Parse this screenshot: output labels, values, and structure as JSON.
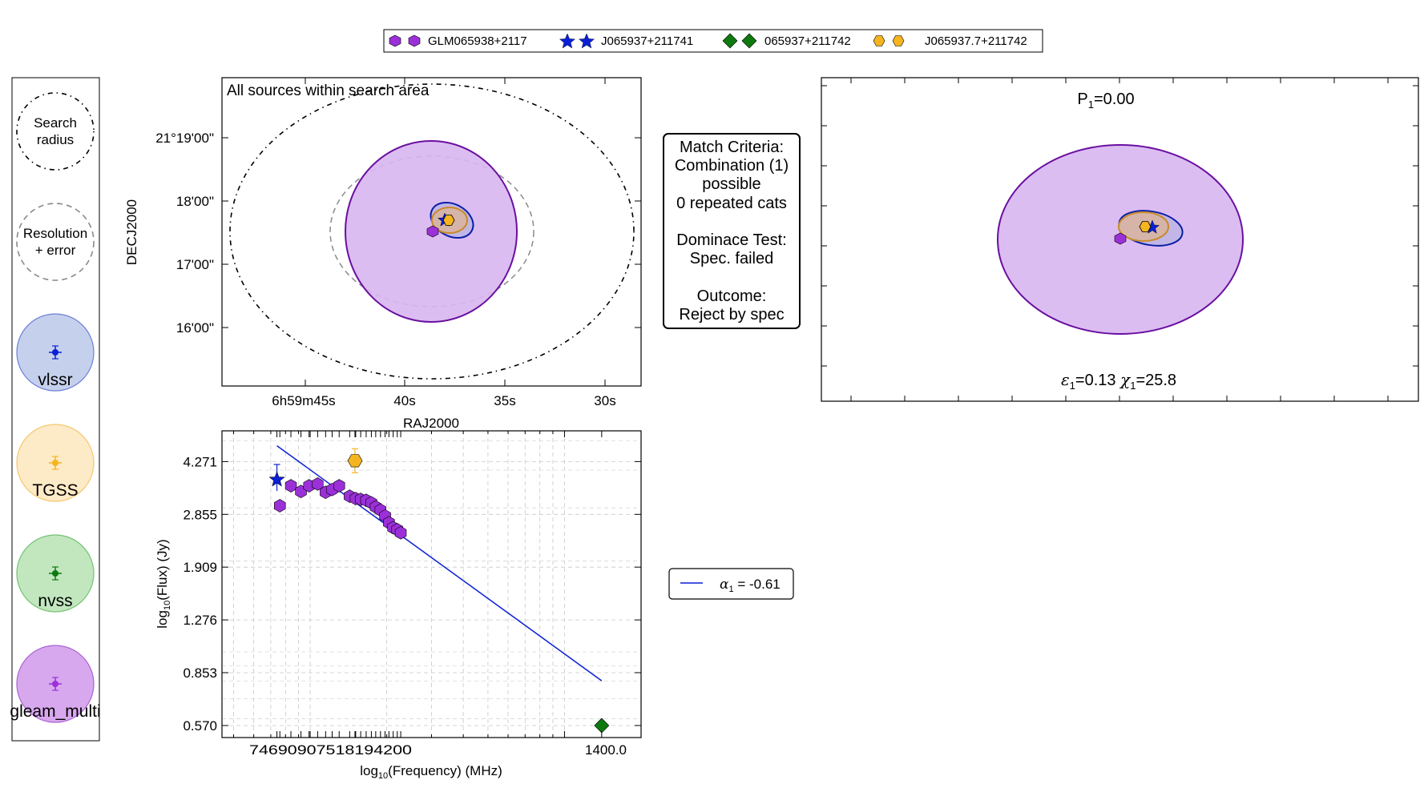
{
  "legend_top": [
    {
      "label": "GLM065938+2117",
      "marker": "hexagon",
      "color": "#9b30d9"
    },
    {
      "label": "J065937+211741",
      "marker": "star",
      "color": "#0a1fd6"
    },
    {
      "label": "065937+211742",
      "marker": "diamond",
      "color": "#0e7a0e"
    },
    {
      "label": "J065937.7+211742",
      "marker": "hexagon",
      "color": "#f5b520"
    }
  ],
  "side_legend": {
    "search_radius": {
      "l1": "Search",
      "l2": "radius"
    },
    "resolution": {
      "l1": "Resolution",
      "l2": "+ error"
    },
    "catalogs": [
      {
        "label": "vlssr",
        "fill": "#c5d0ec",
        "edge": "#6c7fd9",
        "color": "#0a1fd6"
      },
      {
        "label": "TGSS",
        "fill": "#fdeac7",
        "edge": "#f6c76d",
        "color": "#f5b520"
      },
      {
        "label": "nvss",
        "fill": "#c2e7bf",
        "edge": "#72c271",
        "color": "#0e7a0e"
      },
      {
        "label": "gleam_multi",
        "fill": "#d8a8ee",
        "edge": "#a963d2",
        "color": "#9b30d9"
      }
    ]
  },
  "sky_plot": {
    "title": "All sources within search area",
    "xlabel": "RAJ2000",
    "ylabel": "DECJ2000",
    "xticks": [
      "6h59m45s",
      "40s",
      "35s",
      "30s"
    ],
    "yticks": [
      "21°19'00\"",
      "18'00\"",
      "17'00\"",
      "16'00\""
    ]
  },
  "match_box": {
    "line1": "Match Criteria:",
    "line2": "Combination (1)",
    "line3": "possible",
    "line4": "0 repeated cats",
    "line5": "Dominace Test:",
    "line6": "Spec. failed",
    "line7": "Outcome:",
    "line8": "Reject by spec"
  },
  "zoom_plot": {
    "p_label": "P",
    "p_sub": "1",
    "p_value": "=0.00",
    "eps_sym": "ε",
    "eps_sub": "1",
    "eps_value": "=0.13",
    "chi_sym": "χ",
    "chi_sub": "1",
    "chi_value": "=25.8"
  },
  "fit_legend": {
    "alpha_sym": "α",
    "alpha_sub": "1",
    "alpha_value": " = -0.61"
  },
  "chart_data": {
    "type": "scatter",
    "title": "",
    "xlabel": "log10(Frequency) (MHz)",
    "ylabel": "log10(Flux) (Jy)",
    "xlabel_parts": {
      "pre": "log",
      "sub": "10",
      "post": "(Frequency) (MHz)"
    },
    "ylabel_parts": {
      "pre": "log",
      "sub": "10",
      "post": "(Flux) (Jy)"
    },
    "x_scale": "log",
    "y_scale": "log",
    "xlim": [
      45,
      2000
    ],
    "ylim": [
      0.52,
      5.4
    ],
    "yticks": [
      "4.271",
      "2.855",
      "1.909",
      "1.276",
      "0.853",
      "0.570"
    ],
    "ytick_values": [
      4.271,
      2.855,
      1.909,
      1.276,
      0.853,
      0.57
    ],
    "xtick_label_cluster": "74690907518194200",
    "xtick_label_last": "1400.0",
    "grid": true,
    "series": [
      {
        "name": "gleam_multi",
        "marker": "hexagon",
        "color": "#9b30d9",
        "x": [
          76,
          84,
          92,
          99,
          107,
          115,
          122,
          130,
          143,
          151,
          158,
          166,
          174,
          181,
          189,
          197,
          204,
          212,
          220,
          227
        ],
        "y": [
          3.05,
          3.55,
          3.4,
          3.55,
          3.6,
          3.38,
          3.45,
          3.55,
          3.28,
          3.22,
          3.2,
          3.18,
          3.12,
          3.02,
          2.95,
          2.82,
          2.68,
          2.58,
          2.54,
          2.48
        ]
      },
      {
        "name": "vlssr",
        "marker": "star",
        "color": "#0a1fd6",
        "x": [
          74
        ],
        "y": [
          3.72
        ]
      },
      {
        "name": "TGSS",
        "marker": "hexagon",
        "color": "#f5b520",
        "x": [
          150
        ],
        "y": [
          4.3
        ]
      },
      {
        "name": "nvss",
        "marker": "diamond",
        "color": "#0e7a0e",
        "x": [
          1400
        ],
        "y": [
          0.57
        ]
      }
    ],
    "fit": {
      "label": "α1 = -0.61",
      "slope": -0.61,
      "x_range": [
        74,
        1400
      ],
      "y_start": 4.82
    }
  }
}
